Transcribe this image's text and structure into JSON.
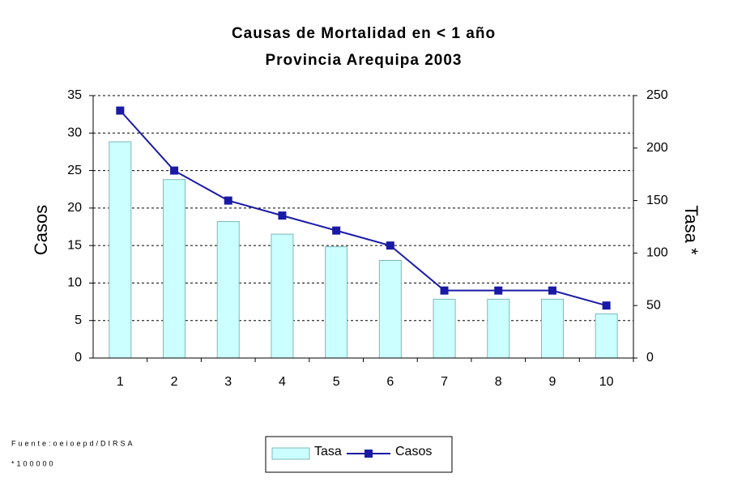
{
  "chart_data": {
    "type": "bar-line",
    "title": "Causas de Mortalidad en < 1 año",
    "subtitle": "Provincia Arequipa 2003",
    "y_label": "Casos",
    "y2_label": "Tasa *",
    "categories": [
      "1",
      "2",
      "3",
      "4",
      "5",
      "6",
      "7",
      "8",
      "9",
      "10"
    ],
    "series": [
      {
        "name": "Tasa",
        "type": "bar",
        "axis": "y2",
        "color": "#ccffff",
        "values": [
          206,
          170,
          130,
          118,
          106,
          93,
          56,
          56,
          56,
          42
        ]
      },
      {
        "name": "Casos",
        "type": "line",
        "axis": "y",
        "color": "#1a1aa6",
        "values": [
          33,
          25,
          21,
          19,
          17,
          15,
          9,
          9,
          9,
          7
        ]
      }
    ],
    "ylim": [
      0,
      35
    ],
    "yticks": [
      0,
      5,
      10,
      15,
      20,
      25,
      30,
      35
    ],
    "y2lim": [
      0,
      250
    ],
    "y2ticks": [
      0,
      50,
      100,
      150,
      200,
      250
    ],
    "grid": true,
    "legend": "bottom",
    "notes": [
      "Fuente:oeioepd/DIRSA",
      "*100000"
    ]
  }
}
